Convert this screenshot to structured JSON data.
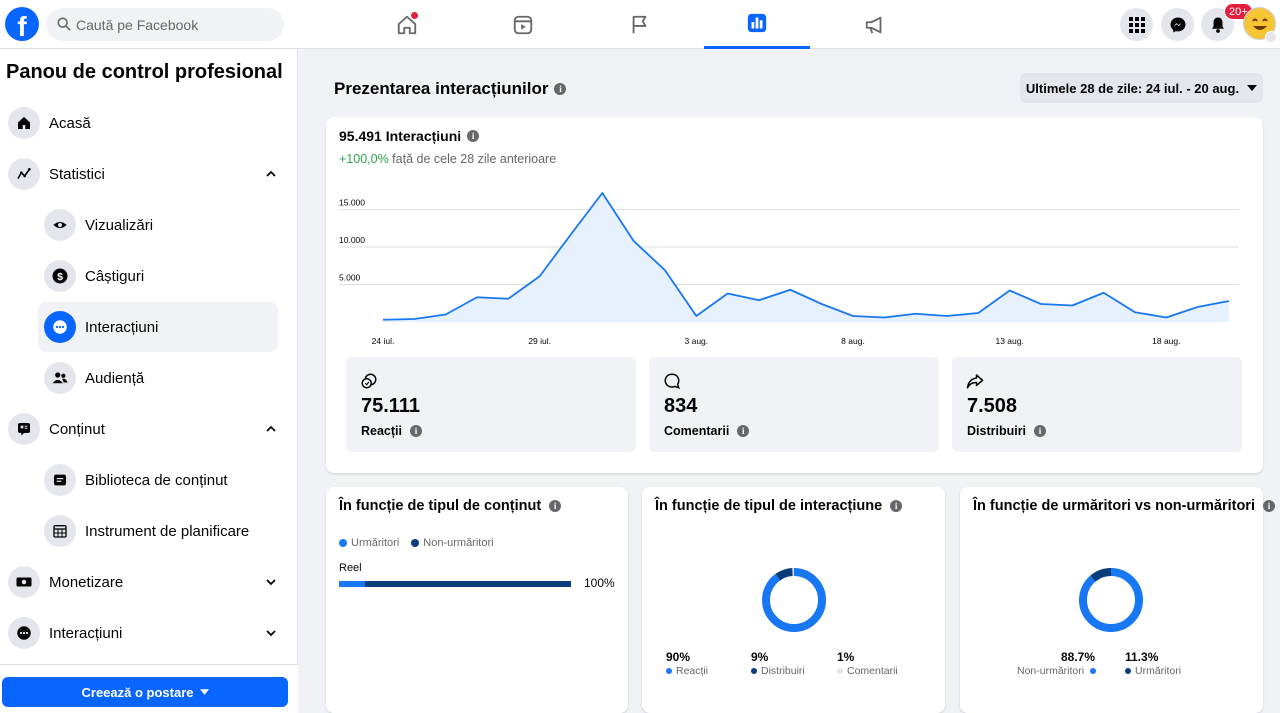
{
  "topbar": {
    "logo_letter": "f",
    "search_placeholder": "Caută pe Facebook",
    "notification_badge": "20+",
    "nav_tabs": [
      "home-icon",
      "video-icon",
      "flag-icon",
      "chart-icon",
      "megaphone-icon"
    ],
    "active_tab": "chart-icon"
  },
  "sidebar": {
    "title": "Panou de control profesional",
    "items": {
      "acasa": "Acasă",
      "statistici": "Statistici",
      "vizualizari": "Vizualizări",
      "castiguri": "Câștiguri",
      "interactiuni_sub": "Interacțiuni",
      "audienta": "Audiență",
      "continut": "Conținut",
      "biblioteca": "Biblioteca de conținut",
      "planificare": "Instrument de planificare",
      "monetizare": "Monetizare",
      "interactiuni": "Interacțiuni"
    },
    "create_button": "Creează o postare"
  },
  "main": {
    "title": "Prezentarea interacțiunilor",
    "date_range": "Ultimele 28 de zile: 24 iul. - 20 aug.",
    "total": "95.491 Interacțiuni",
    "change_value": "+100,0%",
    "change_text": " față de cele 28 zile anterioare",
    "stats": {
      "reactii_value": "75.111",
      "reactii_label": "Reacții",
      "comentarii_value": "834",
      "comentarii_label": "Comentarii",
      "distribuiri_value": "7.508",
      "distribuiri_label": "Distribuiri"
    },
    "content_type": {
      "title": "În funcție de tipul de conținut",
      "legend_followers": "Urmăritori",
      "legend_nonfollowers": "Non-urmăritori",
      "row_label": "Reel",
      "row_percent": "100%",
      "followers_fraction": 0.11
    },
    "interaction_type": {
      "title": "În funcție de tipul de interacțiune",
      "items": [
        {
          "value": "90%",
          "label": "Reacții",
          "color": "#1877f2",
          "pct": 90
        },
        {
          "value": "9%",
          "label": "Distribuiri",
          "color": "#0a3d7b",
          "pct": 9
        },
        {
          "value": "1%",
          "label": "Comentarii",
          "color": "#e4e6eb",
          "pct": 1
        }
      ]
    },
    "followers": {
      "title": "În funcție de urmăritori vs non-urmăritori",
      "items": [
        {
          "value": "88.7%",
          "label": "Non-urmăritori",
          "color": "#1877f2",
          "pct": 88.7
        },
        {
          "value": "11.3%",
          "label": "Urmăritori",
          "color": "#0a3d7b",
          "pct": 11.3
        }
      ]
    }
  },
  "chart_data": {
    "type": "area",
    "title": "",
    "xlabel": "",
    "ylabel": "",
    "x": [
      "24 iul.",
      "25 iul.",
      "26 iul.",
      "27 iul.",
      "28 iul.",
      "29 iul.",
      "30 iul.",
      "31 iul.",
      "1 aug.",
      "2 aug.",
      "3 aug.",
      "4 aug.",
      "5 aug.",
      "6 aug.",
      "7 aug.",
      "8 aug.",
      "9 aug.",
      "10 aug.",
      "11 aug.",
      "12 aug.",
      "13 aug.",
      "14 aug.",
      "15 aug.",
      "16 aug.",
      "17 aug.",
      "18 aug.",
      "19 aug.",
      "20 aug."
    ],
    "tick_labels": [
      "24 iul.",
      "29 iul.",
      "3 aug.",
      "8 aug.",
      "13 aug.",
      "18 aug."
    ],
    "series": [
      {
        "values": [
          300,
          400,
          1000,
          3300,
          3100,
          6100,
          11700,
          17200,
          10800,
          6900,
          800,
          3800,
          2900,
          4300,
          2400,
          800,
          600,
          1100,
          800,
          1200,
          4200,
          2400,
          2200,
          3900,
          1300,
          600,
          2000,
          2800
        ]
      }
    ],
    "y_ticks": [
      "5.000",
      "10.000",
      "15.000"
    ],
    "y_tick_values": [
      5000,
      10000,
      15000
    ],
    "ylim": [
      0,
      18000
    ],
    "grid": true,
    "line_color": "#1877f2",
    "fill_color": "#e7f0fd"
  }
}
